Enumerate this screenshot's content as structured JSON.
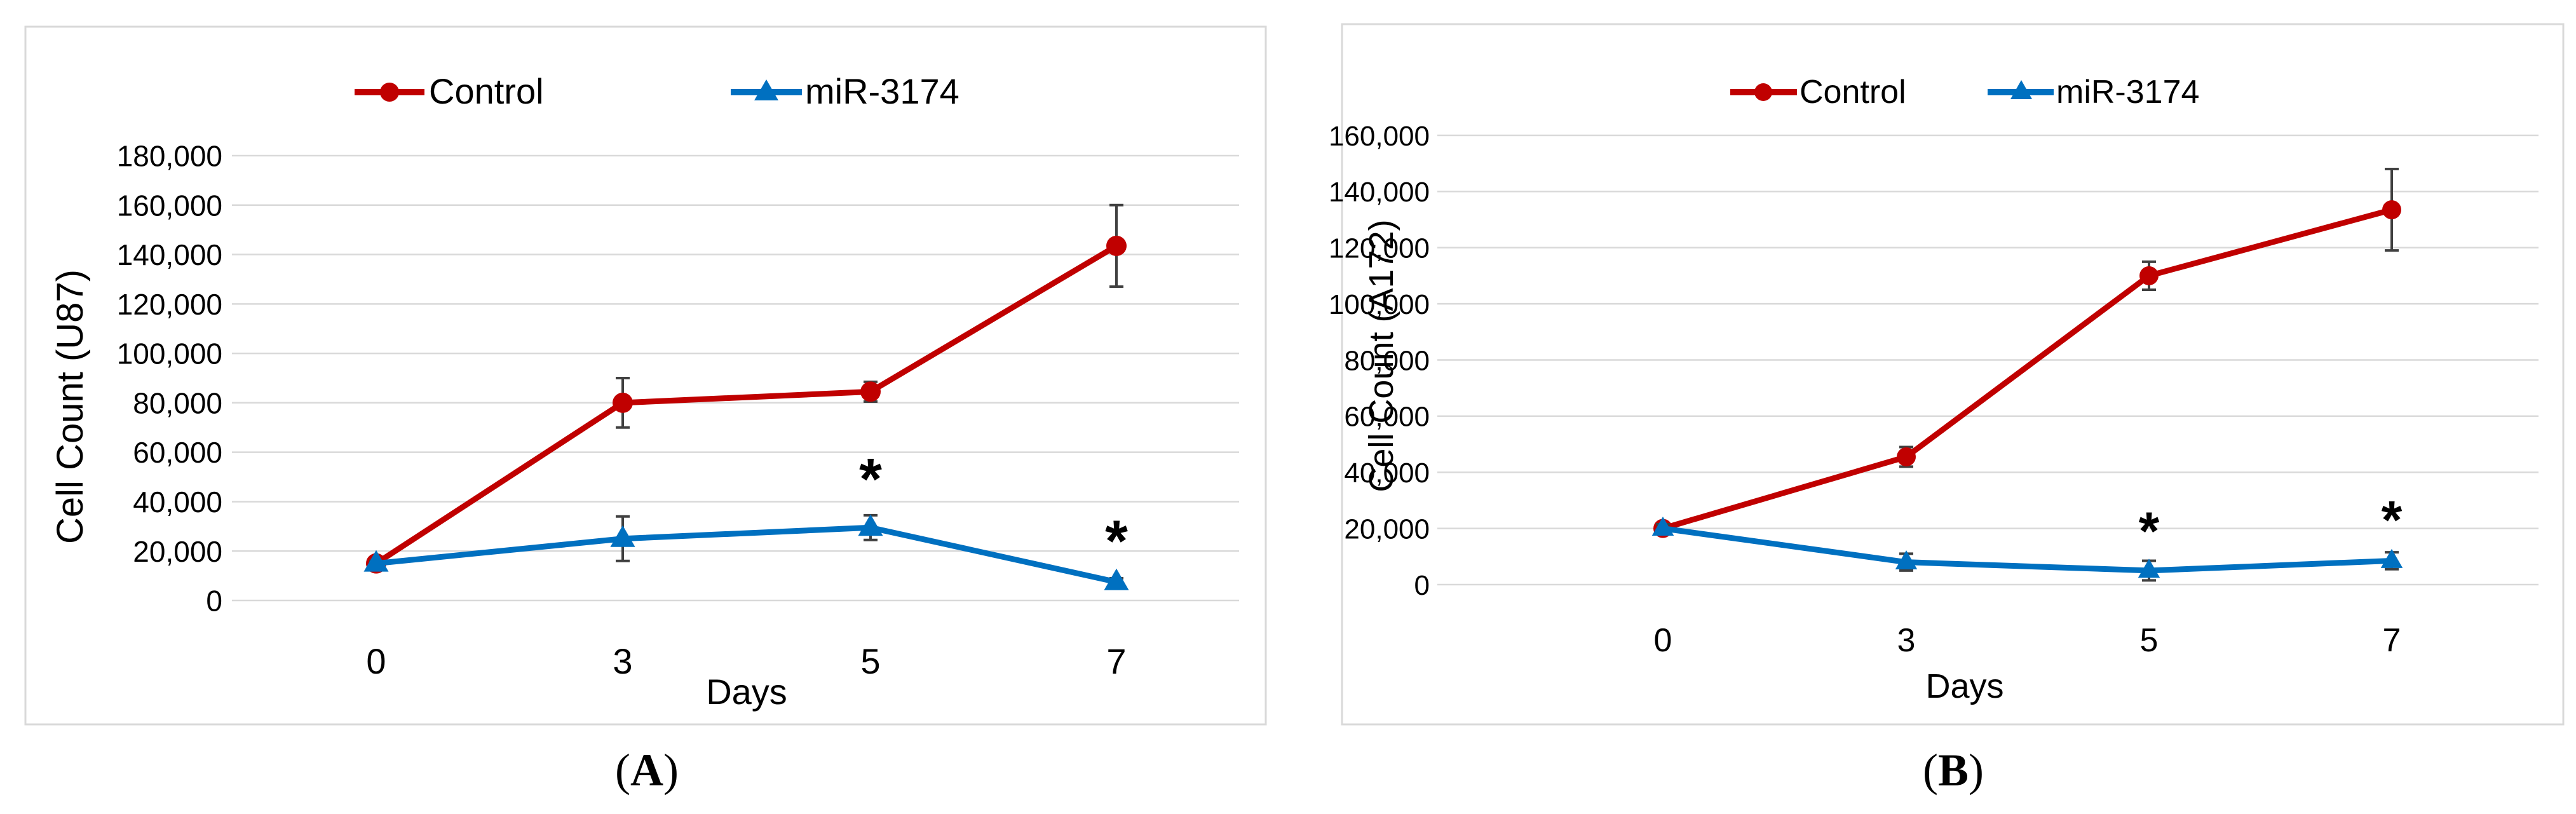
{
  "chart_data": [
    {
      "type": "line",
      "panel_label": "A",
      "xlabel": "Days",
      "ylabel": "Cell Count (U87)",
      "categories": [
        "0",
        "3",
        "5",
        "7"
      ],
      "ylim": [
        0,
        180000
      ],
      "yticks": [
        "0",
        "20,000",
        "40,000",
        "60,000",
        "80,000",
        "100,000",
        "120,000",
        "140,000",
        "160,000",
        "180,000"
      ],
      "grid": true,
      "legend": "top",
      "series": [
        {
          "name": "Control",
          "color": "#c00000",
          "marker": "circle",
          "values": [
            15000,
            80000,
            84500,
            143500
          ],
          "errors": [
            1000,
            10000,
            4000,
            16500
          ]
        },
        {
          "name": "miR-3174",
          "color": "#0070c0",
          "marker": "triangle",
          "values": [
            15000,
            25000,
            29500,
            7500
          ],
          "errors": [
            1000,
            9000,
            5000,
            1500
          ]
        }
      ],
      "annotations": [
        {
          "text": "*",
          "x": "5",
          "y": 54000
        },
        {
          "text": "*",
          "x": "7",
          "y": 29000
        }
      ]
    },
    {
      "type": "line",
      "panel_label": "B",
      "xlabel": "Days",
      "ylabel": "Cell Count (A172)",
      "categories": [
        "0",
        "3",
        "5",
        "7"
      ],
      "ylim": [
        0,
        160000
      ],
      "yticks": [
        "0",
        "20,000",
        "40,000",
        "60,000",
        "80,000",
        "100,000",
        "120,000",
        "140,000",
        "160,000"
      ],
      "grid": true,
      "legend": "top",
      "series": [
        {
          "name": "Control",
          "color": "#c00000",
          "marker": "circle",
          "values": [
            20000,
            45500,
            110000,
            133500
          ],
          "errors": [
            1500,
            3500,
            5000,
            14500
          ]
        },
        {
          "name": "miR-3174",
          "color": "#0070c0",
          "marker": "triangle",
          "values": [
            20000,
            8000,
            5000,
            8500
          ],
          "errors": [
            1500,
            3000,
            3500,
            3000
          ]
        }
      ],
      "annotations": [
        {
          "text": "*",
          "x": "5",
          "y": 23000
        },
        {
          "text": "*",
          "x": "7",
          "y": 27000
        }
      ]
    }
  ]
}
